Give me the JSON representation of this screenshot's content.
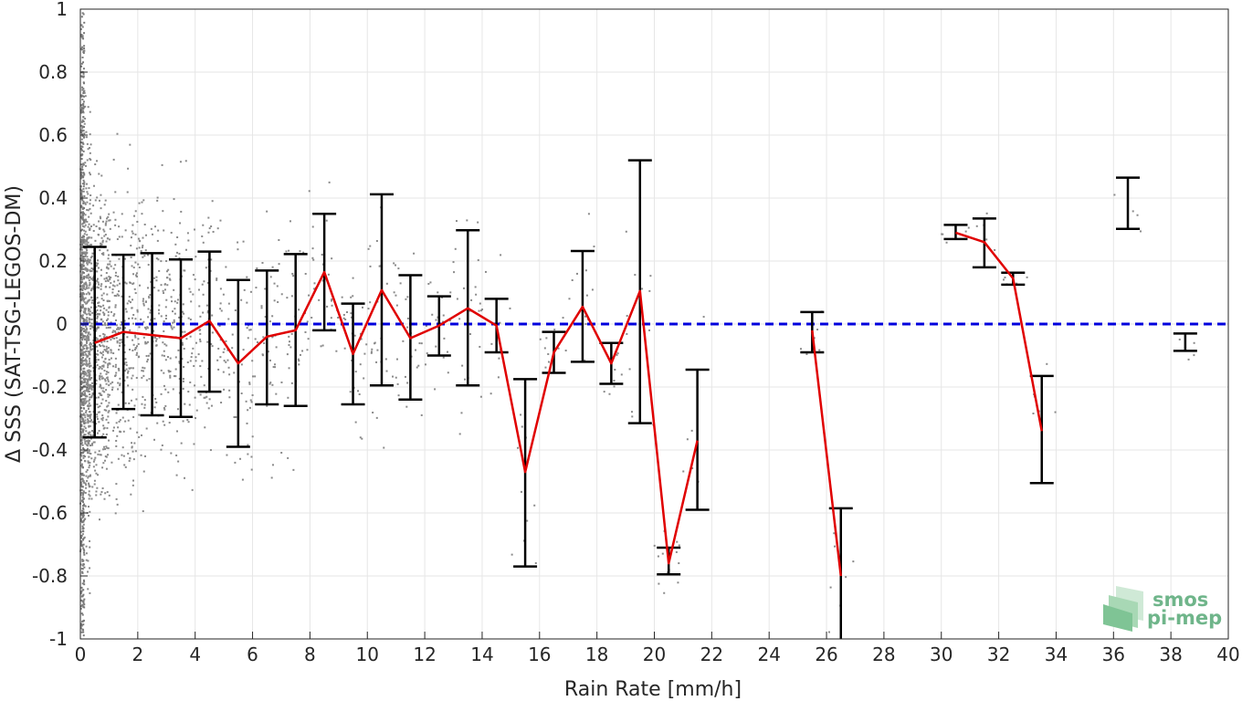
{
  "chart_data": {
    "type": "line",
    "xlabel": "Rain Rate [mm/h]",
    "ylabel": "Δ SSS (SAT-TSG-LEGOS-DM)",
    "xlim": [
      0,
      40
    ],
    "ylim": [
      -1,
      1
    ],
    "x_ticks": [
      "0",
      "2",
      "4",
      "6",
      "8",
      "10",
      "12",
      "14",
      "16",
      "18",
      "20",
      "22",
      "24",
      "26",
      "28",
      "30",
      "32",
      "34",
      "36",
      "38",
      "40"
    ],
    "y_ticks": [
      "1",
      "0.8",
      "0.6",
      "0.4",
      "0.2",
      "0",
      "-0.2",
      "-0.4",
      "-0.6",
      "-0.8",
      "-1"
    ],
    "grid": true,
    "reference_line": {
      "y": 0,
      "style": "dashed",
      "color": "#0000dd"
    },
    "mean_line_color": "#e00000",
    "errorbar_color": "#000000",
    "scatter_color": "#8a8a8a",
    "series": [
      {
        "type": "line",
        "segments": [
          [
            [
              0.5,
              -0.06
            ],
            [
              1.5,
              -0.025
            ],
            [
              2.5,
              -0.035
            ],
            [
              3.5,
              -0.045
            ],
            [
              4.5,
              0.01
            ],
            [
              5.5,
              -0.125
            ],
            [
              6.5,
              -0.04
            ],
            [
              7.5,
              -0.02
            ],
            [
              8.5,
              0.165
            ],
            [
              9.5,
              -0.095
            ],
            [
              10.5,
              0.108
            ],
            [
              11.5,
              -0.045
            ],
            [
              12.5,
              -0.005
            ],
            [
              13.5,
              0.05
            ],
            [
              14.5,
              -0.005
            ],
            [
              15.5,
              -0.47
            ],
            [
              16.5,
              -0.09
            ],
            [
              17.5,
              0.055
            ],
            [
              18.5,
              -0.125
            ],
            [
              19.5,
              0.105
            ],
            [
              20.5,
              -0.76
            ],
            [
              21.5,
              -0.37
            ]
          ],
          [
            [
              25.5,
              -0.02
            ],
            [
              26.5,
              -0.8
            ]
          ],
          [
            [
              30.5,
              0.29
            ],
            [
              31.5,
              0.26
            ],
            [
              32.5,
              0.145
            ],
            [
              33.5,
              -0.34
            ]
          ]
        ]
      },
      {
        "type": "errorbar",
        "bars": [
          {
            "x": 0.5,
            "low": -0.36,
            "high": 0.245
          },
          {
            "x": 1.5,
            "low": -0.27,
            "high": 0.22
          },
          {
            "x": 2.5,
            "low": -0.29,
            "high": 0.225
          },
          {
            "x": 3.5,
            "low": -0.295,
            "high": 0.205
          },
          {
            "x": 4.5,
            "low": -0.215,
            "high": 0.23
          },
          {
            "x": 5.5,
            "low": -0.39,
            "high": 0.14
          },
          {
            "x": 6.5,
            "low": -0.255,
            "high": 0.17
          },
          {
            "x": 7.5,
            "low": -0.26,
            "high": 0.222
          },
          {
            "x": 8.5,
            "low": -0.02,
            "high": 0.35
          },
          {
            "x": 9.5,
            "low": -0.255,
            "high": 0.065
          },
          {
            "x": 10.5,
            "low": -0.195,
            "high": 0.412
          },
          {
            "x": 11.5,
            "low": -0.24,
            "high": 0.155
          },
          {
            "x": 12.5,
            "low": -0.1,
            "high": 0.088
          },
          {
            "x": 13.5,
            "low": -0.195,
            "high": 0.298
          },
          {
            "x": 14.5,
            "low": -0.09,
            "high": 0.08
          },
          {
            "x": 15.5,
            "low": -0.77,
            "high": -0.175
          },
          {
            "x": 16.5,
            "low": -0.155,
            "high": -0.025
          },
          {
            "x": 17.5,
            "low": -0.12,
            "high": 0.232
          },
          {
            "x": 18.5,
            "low": -0.19,
            "high": -0.06
          },
          {
            "x": 19.5,
            "low": -0.315,
            "high": 0.52
          },
          {
            "x": 20.5,
            "low": -0.795,
            "high": -0.71
          },
          {
            "x": 21.5,
            "low": -0.59,
            "high": -0.145
          },
          {
            "x": 25.5,
            "low": -0.09,
            "high": 0.038
          },
          {
            "x": 26.5,
            "low": -1.05,
            "high": -0.585
          },
          {
            "x": 30.5,
            "low": 0.27,
            "high": 0.315
          },
          {
            "x": 31.5,
            "low": 0.18,
            "high": 0.335
          },
          {
            "x": 32.5,
            "low": 0.125,
            "high": 0.163
          },
          {
            "x": 33.5,
            "low": -0.505,
            "high": -0.165
          },
          {
            "x": 36.5,
            "low": 0.302,
            "high": 0.465
          },
          {
            "x": 38.5,
            "low": -0.085,
            "high": -0.03
          }
        ]
      }
    ],
    "scatter_clusters": [
      {
        "x0": 0.0,
        "x1": 0.35,
        "n": 700,
        "sd": 0.32,
        "c": -0.05
      },
      {
        "x0": 0.35,
        "x1": 1.0,
        "n": 450,
        "sd": 0.25,
        "c": -0.04
      },
      {
        "x0": 1.0,
        "x1": 2.0,
        "n": 260,
        "sd": 0.22,
        "c": -0.03
      },
      {
        "x0": 2.0,
        "x1": 3.0,
        "n": 160,
        "sd": 0.22,
        "c": -0.03
      },
      {
        "x0": 3.0,
        "x1": 4.0,
        "n": 120,
        "sd": 0.2,
        "c": -0.04
      },
      {
        "x0": 4.0,
        "x1": 5.0,
        "n": 80,
        "sd": 0.2,
        "c": 0.0
      },
      {
        "x0": 5.0,
        "x1": 6.0,
        "n": 55,
        "sd": 0.22,
        "c": -0.1
      },
      {
        "x0": 6.0,
        "x1": 7.0,
        "n": 45,
        "sd": 0.18,
        "c": -0.04
      },
      {
        "x0": 7.0,
        "x1": 8.0,
        "n": 40,
        "sd": 0.2,
        "c": -0.03
      },
      {
        "x0": 8.0,
        "x1": 9.0,
        "n": 30,
        "sd": 0.15,
        "c": 0.15
      },
      {
        "x0": 9.0,
        "x1": 10.0,
        "n": 30,
        "sd": 0.14,
        "c": -0.1
      },
      {
        "x0": 10.0,
        "x1": 11.0,
        "n": 30,
        "sd": 0.2,
        "c": 0.05
      },
      {
        "x0": 11.0,
        "x1": 12.0,
        "n": 25,
        "sd": 0.15,
        "c": -0.05
      },
      {
        "x0": 12.0,
        "x1": 13.0,
        "n": 20,
        "sd": 0.08,
        "c": 0.0
      },
      {
        "x0": 13.0,
        "x1": 14.0,
        "n": 25,
        "sd": 0.18,
        "c": 0.03
      },
      {
        "x0": 14.0,
        "x1": 15.0,
        "n": 12,
        "sd": 0.1,
        "c": -0.05
      },
      {
        "x0": 15.0,
        "x1": 16.0,
        "n": 10,
        "sd": 0.18,
        "c": -0.45
      },
      {
        "x0": 16.0,
        "x1": 17.0,
        "n": 10,
        "sd": 0.06,
        "c": -0.1
      },
      {
        "x0": 17.0,
        "x1": 18.0,
        "n": 12,
        "sd": 0.12,
        "c": 0.05
      },
      {
        "x0": 18.0,
        "x1": 19.0,
        "n": 8,
        "sd": 0.06,
        "c": -0.12
      },
      {
        "x0": 19.0,
        "x1": 20.0,
        "n": 12,
        "sd": 0.25,
        "c": 0.1
      },
      {
        "x0": 20.0,
        "x1": 21.0,
        "n": 14,
        "sd": 0.05,
        "c": -0.75
      },
      {
        "x0": 21.0,
        "x1": 22.0,
        "n": 6,
        "sd": 0.15,
        "c": -0.4
      },
      {
        "x0": 25.0,
        "x1": 26.0,
        "n": 6,
        "sd": 0.05,
        "c": -0.03
      },
      {
        "x0": 26.0,
        "x1": 27.0,
        "n": 8,
        "sd": 0.12,
        "c": -0.85
      },
      {
        "x0": 30.0,
        "x1": 31.0,
        "n": 5,
        "sd": 0.02,
        "c": 0.29
      },
      {
        "x0": 31.0,
        "x1": 32.0,
        "n": 6,
        "sd": 0.05,
        "c": 0.28
      },
      {
        "x0": 32.0,
        "x1": 33.0,
        "n": 5,
        "sd": 0.02,
        "c": 0.14
      },
      {
        "x0": 33.0,
        "x1": 34.0,
        "n": 6,
        "sd": 0.12,
        "c": -0.3
      },
      {
        "x0": 36.0,
        "x1": 37.0,
        "n": 4,
        "sd": 0.05,
        "c": 0.38
      },
      {
        "x0": 38.0,
        "x1": 39.0,
        "n": 4,
        "sd": 0.03,
        "c": -0.07
      }
    ]
  },
  "logo": {
    "line1": "smos",
    "line2": "pi-mep",
    "color": "#6fb58a"
  }
}
